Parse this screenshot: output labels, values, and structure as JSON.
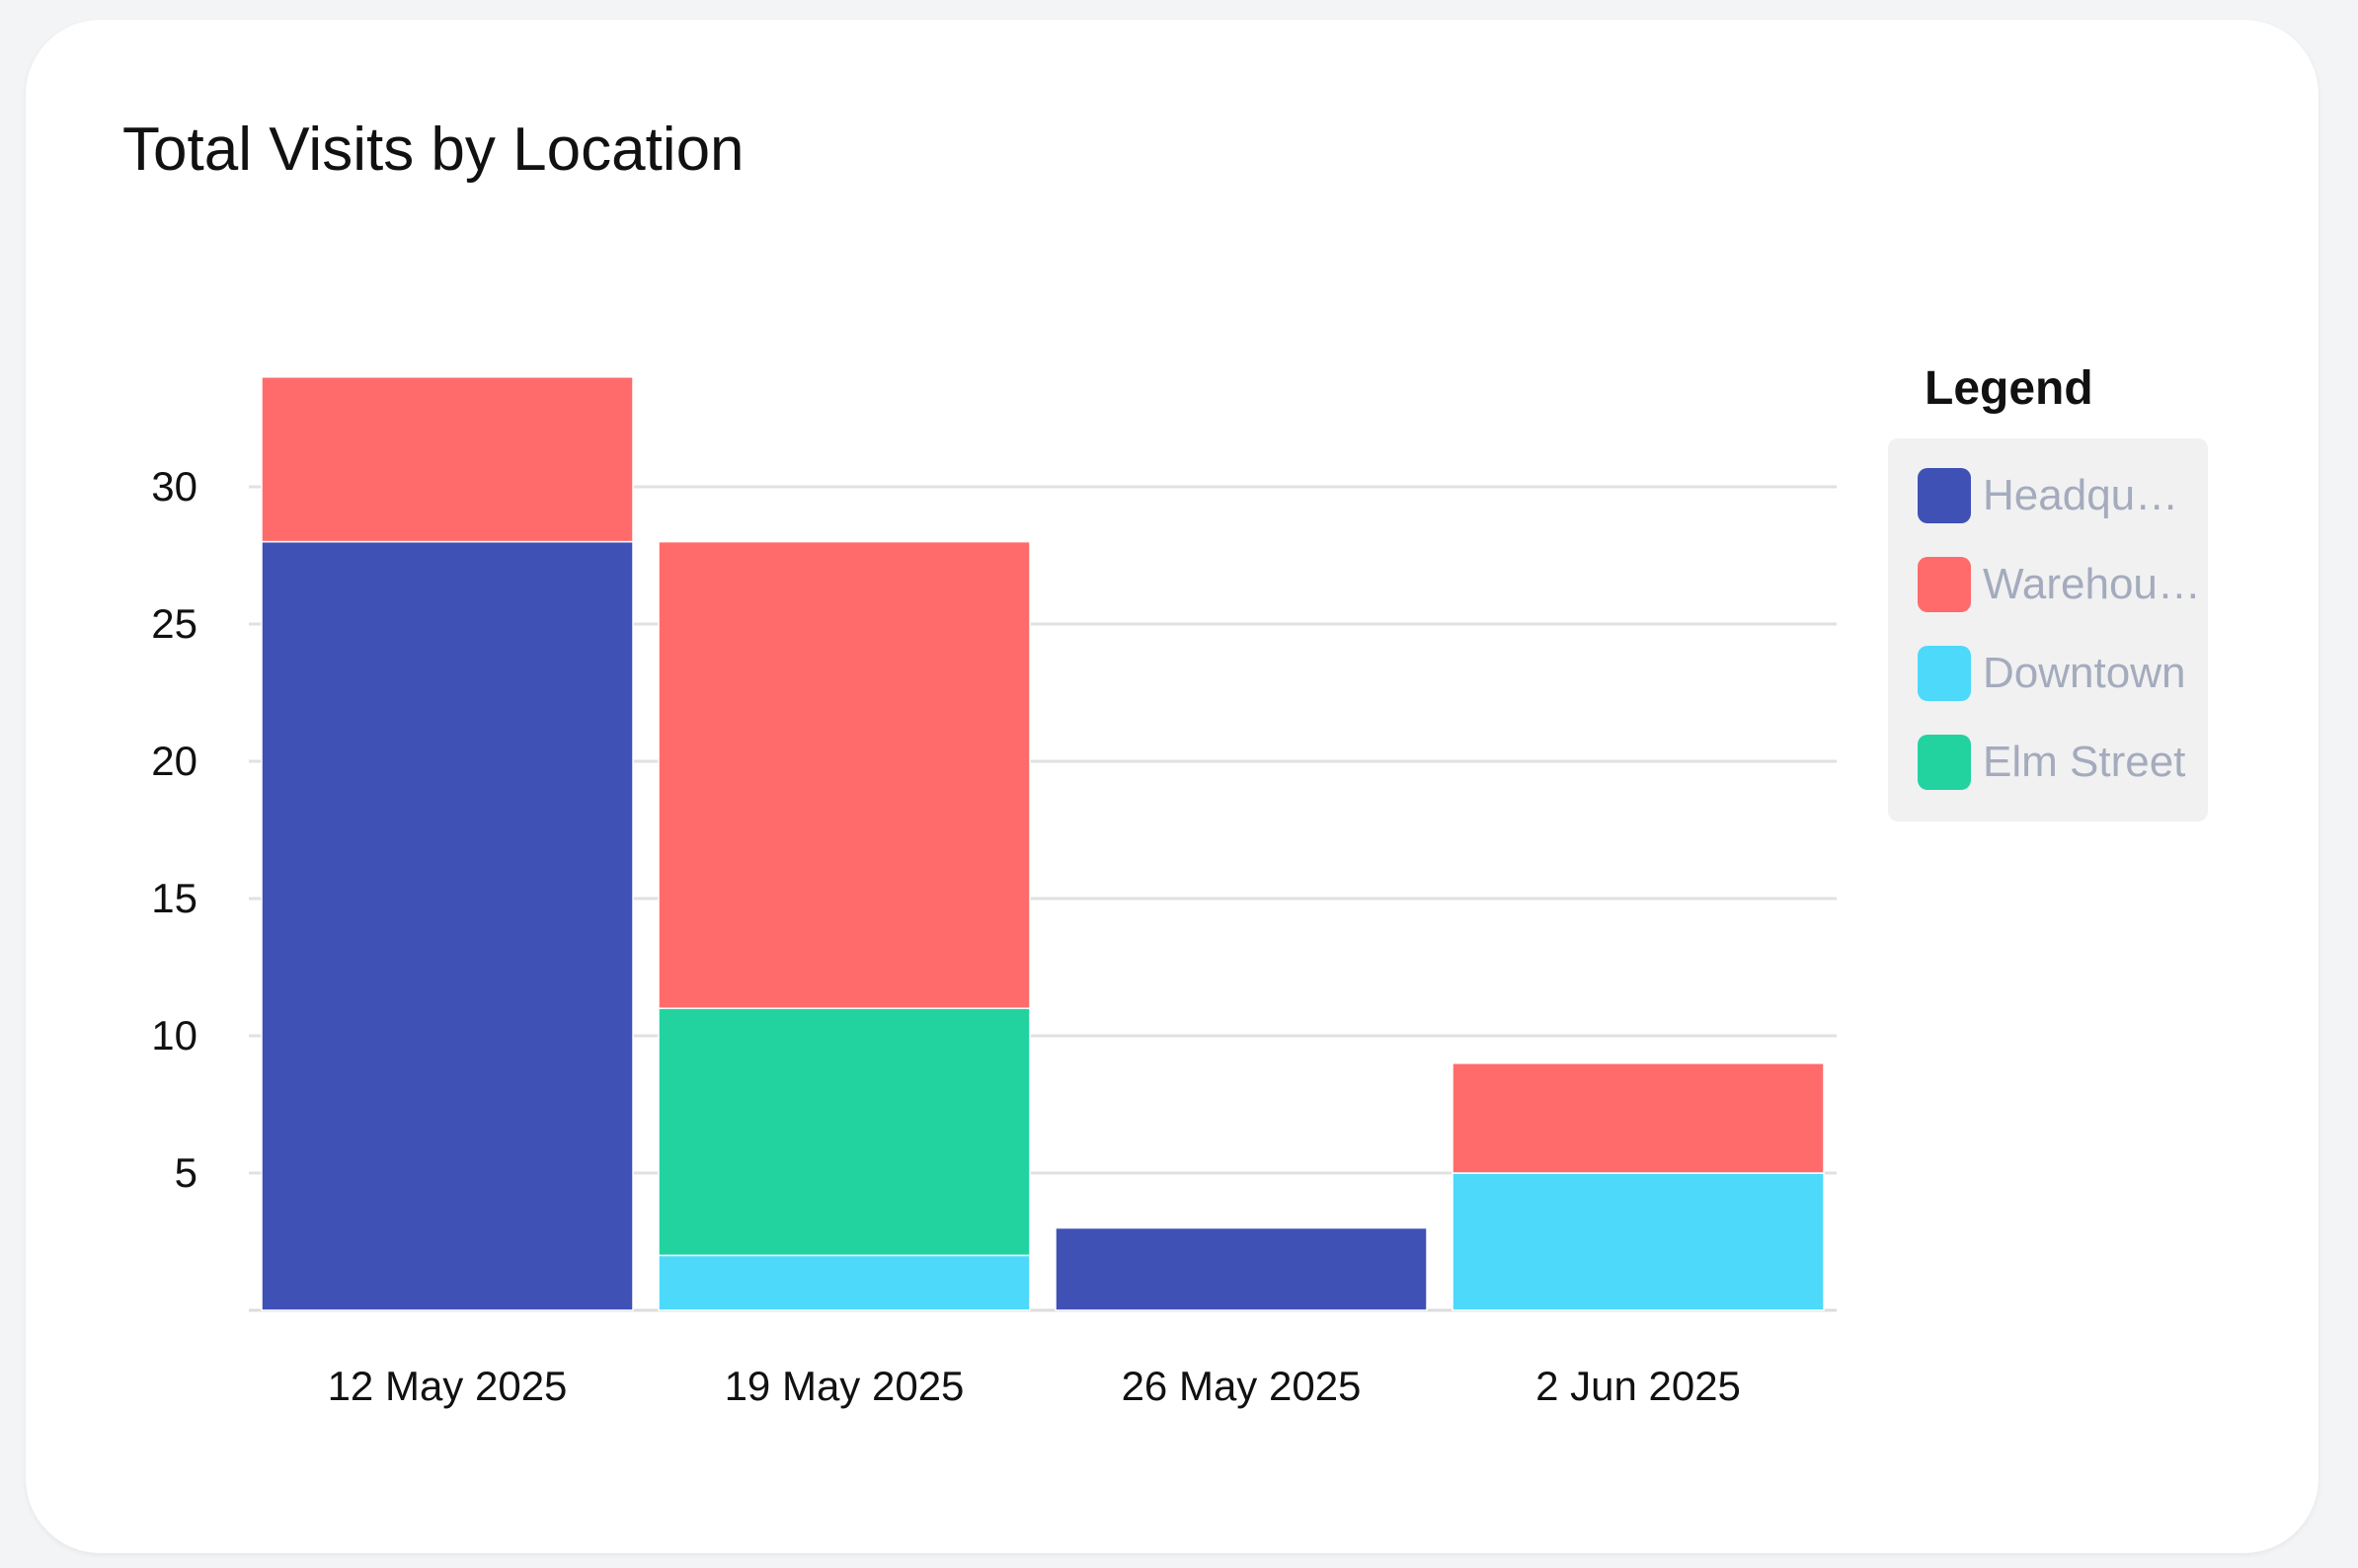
{
  "card": {
    "title": "Total Visits by Location"
  },
  "legend": {
    "heading": "Legend",
    "items": [
      {
        "label": "Headquarters",
        "color": "#3f51b5"
      },
      {
        "label": "Warehouse",
        "color": "#ff6b6b"
      },
      {
        "label": "Downtown",
        "color": "#4dd9fa"
      },
      {
        "label": "Elm Street",
        "color": "#22d3a0"
      }
    ]
  },
  "chart_data": {
    "type": "bar",
    "stacked": true,
    "title": "Total Visits by Location",
    "xlabel": "",
    "ylabel": "",
    "categories": [
      "12 May 2025",
      "19 May 2025",
      "26 May 2025",
      "2 Jun 2025"
    ],
    "yticks": [
      5,
      10,
      15,
      20,
      25,
      30
    ],
    "ylim": [
      0,
      34
    ],
    "grid": true,
    "legend_position": "right",
    "series": [
      {
        "name": "Headquarters",
        "color": "#3f51b5",
        "values": [
          28,
          0,
          3,
          0
        ]
      },
      {
        "name": "Downtown",
        "color": "#4dd9fa",
        "values": [
          0,
          2,
          0,
          5
        ]
      },
      {
        "name": "Elm Street",
        "color": "#22d3a0",
        "values": [
          0,
          9,
          0,
          0
        ]
      },
      {
        "name": "Warehouse",
        "color": "#ff6b6b",
        "values": [
          6,
          17,
          0,
          4
        ]
      }
    ]
  }
}
